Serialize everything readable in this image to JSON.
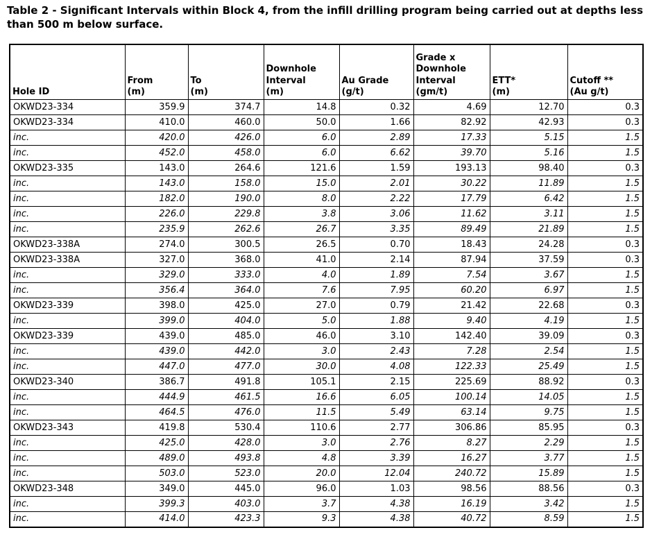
{
  "title": "Table 2 - Significant Intervals within Block 4, from the infill drilling program being carried out at depths less than 500 m below surface.",
  "table": {
    "columns": [
      {
        "label": "Hole ID",
        "align": "left"
      },
      {
        "label": "From\n(m)",
        "align": "right"
      },
      {
        "label": "To\n(m)",
        "align": "right"
      },
      {
        "label": "Downhole\nInterval\n(m)",
        "align": "right"
      },
      {
        "label": "Au Grade\n(g/t)",
        "align": "right"
      },
      {
        "label": "Grade x\nDownhole\nInterval\n(gm/t)",
        "align": "right"
      },
      {
        "label": "ETT*\n(m)",
        "align": "right"
      },
      {
        "label": "Cutoff **\n(Au g/t)",
        "align": "right"
      }
    ],
    "rows": [
      {
        "italic": false,
        "cells": [
          "OKWD23-334",
          "359.9",
          "374.7",
          "14.8",
          "0.32",
          "4.69",
          "12.70",
          "0.3"
        ]
      },
      {
        "italic": false,
        "cells": [
          "OKWD23-334",
          "410.0",
          "460.0",
          "50.0",
          "1.66",
          "82.92",
          "42.93",
          "0.3"
        ]
      },
      {
        "italic": true,
        "cells": [
          "inc.",
          "420.0",
          "426.0",
          "6.0",
          "2.89",
          "17.33",
          "5.15",
          "1.5"
        ]
      },
      {
        "italic": true,
        "cells": [
          "inc.",
          "452.0",
          "458.0",
          "6.0",
          "6.62",
          "39.70",
          "5.16",
          "1.5"
        ]
      },
      {
        "italic": false,
        "cells": [
          "OKWD23-335",
          "143.0",
          "264.6",
          "121.6",
          "1.59",
          "193.13",
          "98.40",
          "0.3"
        ]
      },
      {
        "italic": true,
        "cells": [
          "inc.",
          "143.0",
          "158.0",
          "15.0",
          "2.01",
          "30.22",
          "11.89",
          "1.5"
        ]
      },
      {
        "italic": true,
        "cells": [
          "inc.",
          "182.0",
          "190.0",
          "8.0",
          "2.22",
          "17.79",
          "6.42",
          "1.5"
        ]
      },
      {
        "italic": true,
        "cells": [
          "inc.",
          "226.0",
          "229.8",
          "3.8",
          "3.06",
          "11.62",
          "3.11",
          "1.5"
        ]
      },
      {
        "italic": true,
        "cells": [
          "inc.",
          "235.9",
          "262.6",
          "26.7",
          "3.35",
          "89.49",
          "21.89",
          "1.5"
        ]
      },
      {
        "italic": false,
        "cells": [
          "OKWD23-338A",
          "274.0",
          "300.5",
          "26.5",
          "0.70",
          "18.43",
          "24.28",
          "0.3"
        ]
      },
      {
        "italic": false,
        "cells": [
          "OKWD23-338A",
          "327.0",
          "368.0",
          "41.0",
          "2.14",
          "87.94",
          "37.59",
          "0.3"
        ]
      },
      {
        "italic": true,
        "cells": [
          "inc.",
          "329.0",
          "333.0",
          "4.0",
          "1.89",
          "7.54",
          "3.67",
          "1.5"
        ]
      },
      {
        "italic": true,
        "cells": [
          "inc.",
          "356.4",
          "364.0",
          "7.6",
          "7.95",
          "60.20",
          "6.97",
          "1.5"
        ]
      },
      {
        "italic": false,
        "cells": [
          "OKWD23-339",
          "398.0",
          "425.0",
          "27.0",
          "0.79",
          "21.42",
          "22.68",
          "0.3"
        ]
      },
      {
        "italic": true,
        "cells": [
          "inc.",
          "399.0",
          "404.0",
          "5.0",
          "1.88",
          "9.40",
          "4.19",
          "1.5"
        ]
      },
      {
        "italic": false,
        "cells": [
          "OKWD23-339",
          "439.0",
          "485.0",
          "46.0",
          "3.10",
          "142.40",
          "39.09",
          "0.3"
        ]
      },
      {
        "italic": true,
        "cells": [
          "inc.",
          "439.0",
          "442.0",
          "3.0",
          "2.43",
          "7.28",
          "2.54",
          "1.5"
        ]
      },
      {
        "italic": true,
        "cells": [
          "inc.",
          "447.0",
          "477.0",
          "30.0",
          "4.08",
          "122.33",
          "25.49",
          "1.5"
        ]
      },
      {
        "italic": false,
        "cells": [
          "OKWD23-340",
          "386.7",
          "491.8",
          "105.1",
          "2.15",
          "225.69",
          "88.92",
          "0.3"
        ]
      },
      {
        "italic": true,
        "cells": [
          "inc.",
          "444.9",
          "461.5",
          "16.6",
          "6.05",
          "100.14",
          "14.05",
          "1.5"
        ]
      },
      {
        "italic": true,
        "cells": [
          "inc.",
          "464.5",
          "476.0",
          "11.5",
          "5.49",
          "63.14",
          "9.75",
          "1.5"
        ]
      },
      {
        "italic": false,
        "cells": [
          "OKWD23-343",
          "419.8",
          "530.4",
          "110.6",
          "2.77",
          "306.86",
          "85.95",
          "0.3"
        ]
      },
      {
        "italic": true,
        "cells": [
          "inc.",
          "425.0",
          "428.0",
          "3.0",
          "2.76",
          "8.27",
          "2.29",
          "1.5"
        ]
      },
      {
        "italic": true,
        "cells": [
          "inc.",
          "489.0",
          "493.8",
          "4.8",
          "3.39",
          "16.27",
          "3.77",
          "1.5"
        ]
      },
      {
        "italic": true,
        "cells": [
          "inc.",
          "503.0",
          "523.0",
          "20.0",
          "12.04",
          "240.72",
          "15.89",
          "1.5"
        ]
      },
      {
        "italic": false,
        "cells": [
          "OKWD23-348",
          "349.0",
          "445.0",
          "96.0",
          "1.03",
          "98.56",
          "88.56",
          "0.3"
        ]
      },
      {
        "italic": true,
        "cells": [
          "inc.",
          "399.3",
          "403.0",
          "3.7",
          "4.38",
          "16.19",
          "3.42",
          "1.5"
        ]
      },
      {
        "italic": true,
        "cells": [
          "inc.",
          "414.0",
          "423.3",
          "9.3",
          "4.38",
          "40.72",
          "8.59",
          "1.5"
        ]
      }
    ]
  }
}
